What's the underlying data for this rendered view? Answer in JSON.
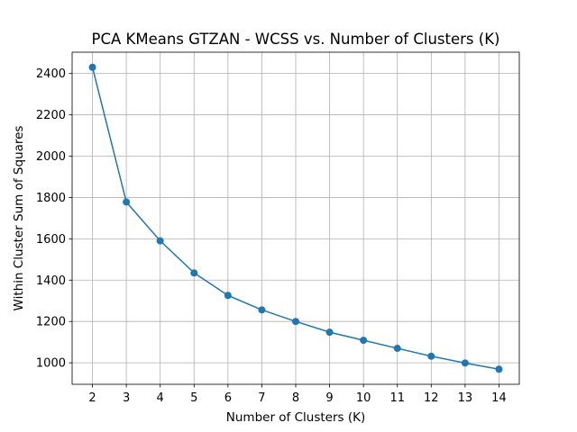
{
  "chart_data": {
    "type": "line",
    "title": "PCA KMeans GTZAN - WCSS vs. Number of Clusters (K)",
    "xlabel": "Number of Clusters (K)",
    "ylabel": "Within Cluster Sum of Squares",
    "x": [
      2,
      3,
      4,
      5,
      6,
      7,
      8,
      9,
      10,
      11,
      12,
      13,
      14
    ],
    "series": [
      {
        "values": [
          2430,
          1778,
          1590,
          1435,
          1326,
          1256,
          1200,
          1148,
          1109,
          1070,
          1032,
          999,
          969
        ],
        "color": "#1f77b4",
        "marker": "circle"
      }
    ],
    "xlim": [
      1.4,
      14.6
    ],
    "ylim": [
      896,
      2503
    ],
    "xticks": [
      "2",
      "3",
      "4",
      "5",
      "6",
      "7",
      "8",
      "9",
      "10",
      "11",
      "12",
      "13",
      "14"
    ],
    "yticks": [
      "1000",
      "1200",
      "1400",
      "1600",
      "1800",
      "2000",
      "2200",
      "2400"
    ],
    "grid": true,
    "grid_color": "#b0b0b0",
    "legend": false
  }
}
